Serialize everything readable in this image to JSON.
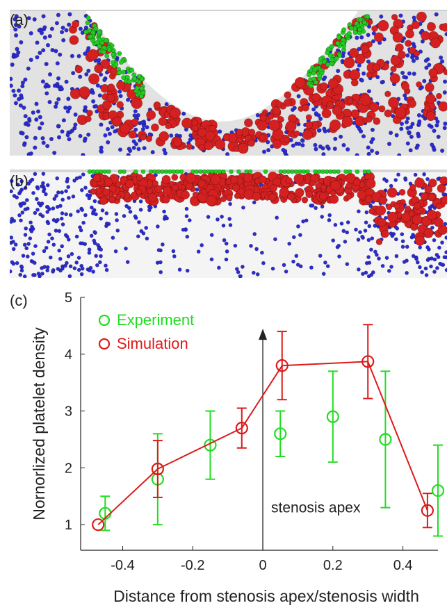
{
  "panels": {
    "a_label": "(a)",
    "b_label": "(b)",
    "c_label": "(c)"
  },
  "particle_colors": {
    "rbc": "#2b2bd4",
    "wall_platelet": "#22cc22",
    "platelet": "#d42020",
    "vessel": "#e2e2e2"
  },
  "chart_data": {
    "type": "scatter",
    "xlabel": "Distance from stenosis apex/stenosis width",
    "ylabel": "Nornorlized platelet density",
    "xlim": [
      -0.52,
      0.5
    ],
    "ylim": [
      0.55,
      5.0
    ],
    "xticks": [
      "-0.4",
      "-0.2",
      "0",
      "0.2",
      "0.4"
    ],
    "xtick_values": [
      -0.4,
      -0.2,
      0,
      0.2,
      0.4
    ],
    "yticks": [
      "1",
      "2",
      "3",
      "4",
      "5"
    ],
    "ytick_values": [
      1,
      2,
      3,
      4,
      5
    ],
    "grid": false,
    "legend_position": "top-left",
    "annotation": {
      "text": "stenosis apex",
      "x": 0,
      "arrow_from_y": 0.55,
      "arrow_to_y": 4.4
    },
    "series": [
      {
        "name": "Experiment",
        "color": "#22dd22",
        "style": "markers+errorbars",
        "x": [
          -0.45,
          -0.3,
          -0.15,
          0.05,
          0.2,
          0.35,
          0.5
        ],
        "y": [
          1.2,
          1.8,
          2.4,
          2.6,
          2.9,
          2.5,
          1.6
        ],
        "err_low": [
          0.3,
          0.8,
          0.6,
          0.4,
          0.8,
          1.2,
          0.8
        ],
        "err_high": [
          0.3,
          0.8,
          0.6,
          0.4,
          0.8,
          1.2,
          0.8
        ]
      },
      {
        "name": "Simulation",
        "color": "#dd1a1a",
        "style": "line+markers+errorbars",
        "x": [
          -0.47,
          -0.3,
          -0.06,
          0.055,
          0.3,
          0.47
        ],
        "y": [
          1.0,
          1.98,
          2.7,
          3.8,
          3.87,
          1.25
        ],
        "err_low": [
          0.0,
          0.5,
          0.35,
          0.6,
          0.65,
          0.3
        ],
        "err_high": [
          0.0,
          0.5,
          0.35,
          0.6,
          0.65,
          0.3
        ]
      }
    ]
  }
}
